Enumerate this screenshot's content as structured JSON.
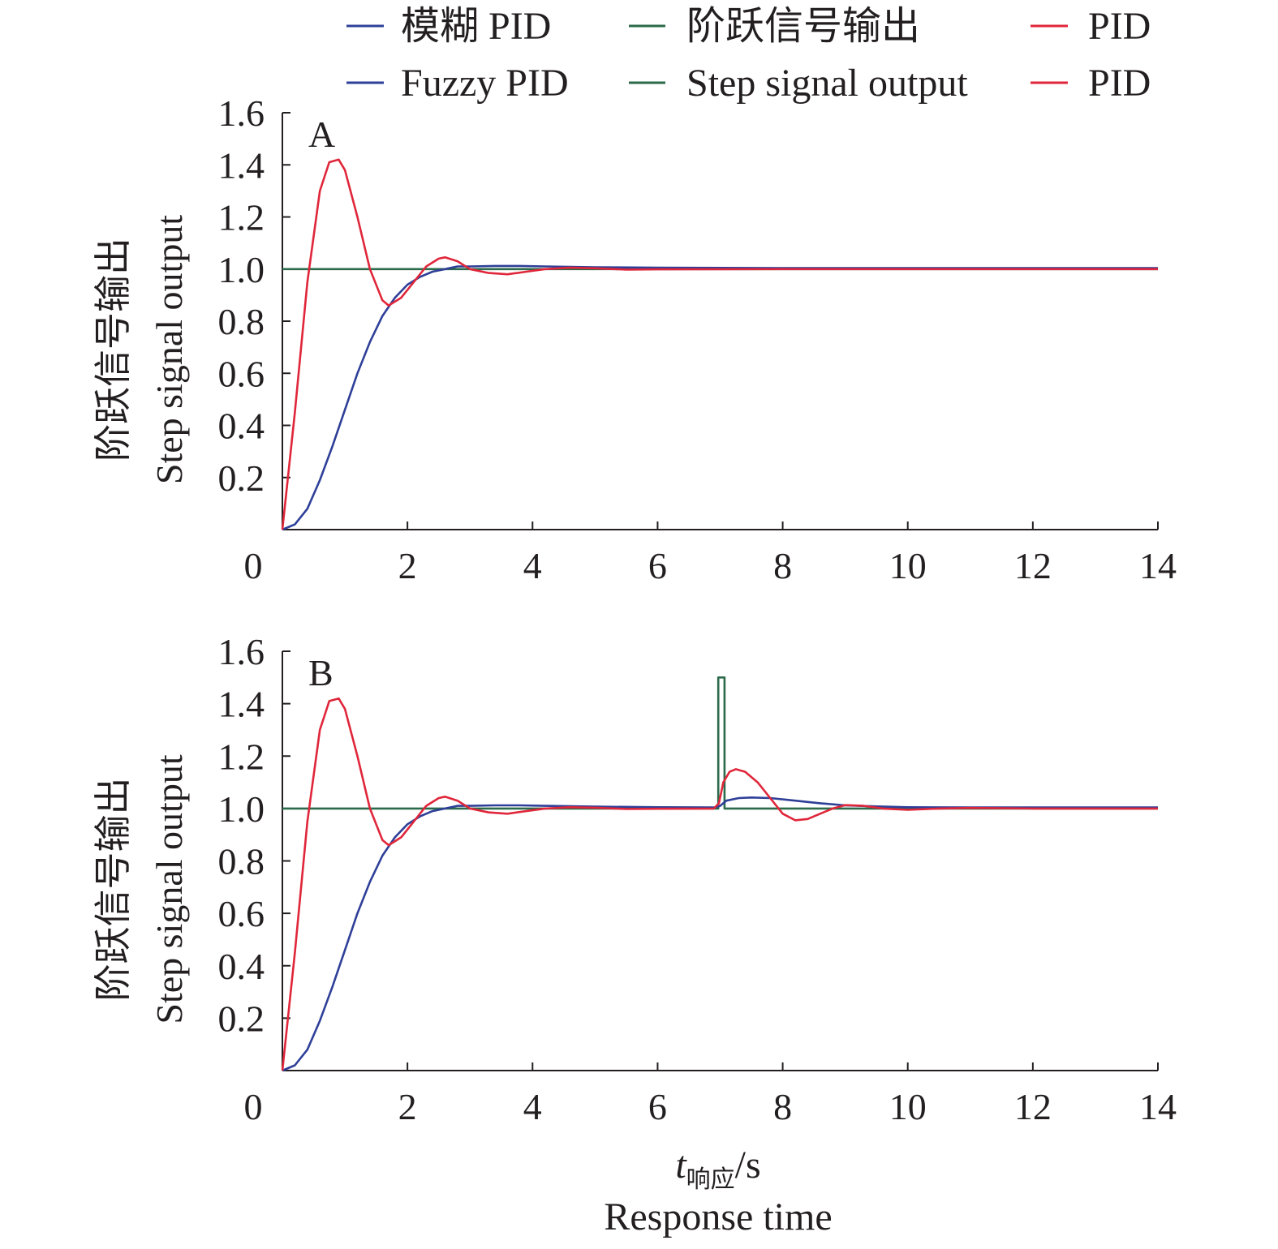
{
  "legend": [
    {
      "label_zh": "模糊 PID",
      "label_en": "Fuzzy PID",
      "color": "#2e3f98"
    },
    {
      "label_zh": "阶跃信号输出",
      "label_en": "Step signal output",
      "color": "#2b6a4a"
    },
    {
      "label_zh": "PID",
      "label_en": "PID",
      "color": "#e0263a"
    }
  ],
  "xlabel": {
    "symbol": "t",
    "subscript": "响应",
    "unit": "/s",
    "en": "Response time"
  },
  "chart_data": [
    {
      "type": "line",
      "panel_label": "A",
      "ylabel_zh": "阶跃信号输出",
      "ylabel_en": "Step signal output",
      "xlim": [
        0,
        14
      ],
      "ylim": [
        0,
        1.6
      ],
      "x_ticks": [
        "0",
        "2",
        "4",
        "6",
        "8",
        "10",
        "12",
        "14"
      ],
      "y_ticks": [
        "0.2",
        "0.4",
        "0.6",
        "0.8",
        "1.0",
        "1.2",
        "1.4",
        "1.6"
      ],
      "grid": false,
      "series": [
        {
          "name": "阶跃信号输出",
          "color": "#2b6a4a",
          "x": [
            0,
            14
          ],
          "y": [
            1.0,
            1.0
          ]
        },
        {
          "name": "模糊 PID",
          "color": "#2e3f98",
          "x": [
            0,
            0.2,
            0.4,
            0.6,
            0.8,
            1.0,
            1.2,
            1.4,
            1.6,
            1.8,
            2.0,
            2.2,
            2.4,
            2.6,
            2.8,
            3.0,
            3.4,
            3.8,
            4.2,
            5.0,
            6.0,
            8.0,
            10.0,
            12.0,
            14.0
          ],
          "y": [
            0.0,
            0.02,
            0.08,
            0.19,
            0.32,
            0.46,
            0.6,
            0.72,
            0.82,
            0.89,
            0.94,
            0.97,
            0.99,
            1.0,
            1.01,
            1.01,
            1.012,
            1.012,
            1.01,
            1.007,
            1.005,
            1.004,
            1.004,
            1.004,
            1.004
          ]
        },
        {
          "name": "PID",
          "color": "#e0263a",
          "x": [
            0,
            0.2,
            0.4,
            0.6,
            0.75,
            0.9,
            1.0,
            1.2,
            1.4,
            1.6,
            1.7,
            1.9,
            2.1,
            2.3,
            2.5,
            2.6,
            2.8,
            3.0,
            3.3,
            3.6,
            3.9,
            4.2,
            4.6,
            5.0,
            5.5,
            6.0,
            8.0,
            10.0,
            12.0,
            14.0
          ],
          "y": [
            0.0,
            0.45,
            0.95,
            1.3,
            1.41,
            1.42,
            1.38,
            1.2,
            1.0,
            0.88,
            0.86,
            0.89,
            0.95,
            1.01,
            1.04,
            1.045,
            1.03,
            1.0,
            0.985,
            0.98,
            0.99,
            1.0,
            1.005,
            1.003,
            0.998,
            0.999,
            1.0,
            1.0,
            1.0,
            1.0
          ]
        }
      ]
    },
    {
      "type": "line",
      "panel_label": "B",
      "ylabel_zh": "阶跃信号输出",
      "ylabel_en": "Step signal output",
      "xlim": [
        0,
        14
      ],
      "ylim": [
        0,
        1.6
      ],
      "x_ticks": [
        "0",
        "2",
        "4",
        "6",
        "8",
        "10",
        "12",
        "14"
      ],
      "y_ticks": [
        "0.2",
        "0.4",
        "0.6",
        "0.8",
        "1.0",
        "1.2",
        "1.4",
        "1.6"
      ],
      "grid": false,
      "series": [
        {
          "name": "阶跃信号输出",
          "color": "#2b6a4a",
          "x": [
            0,
            6.97,
            6.97,
            7.07,
            7.07,
            14
          ],
          "y": [
            1.0,
            1.0,
            1.5,
            1.5,
            1.0,
            1.0
          ]
        },
        {
          "name": "模糊 PID",
          "color": "#2e3f98",
          "x": [
            0,
            0.2,
            0.4,
            0.6,
            0.8,
            1.0,
            1.2,
            1.4,
            1.6,
            1.8,
            2.0,
            2.2,
            2.4,
            2.6,
            2.8,
            3.0,
            3.4,
            3.8,
            4.2,
            5.0,
            6.0,
            6.9,
            7.0,
            7.1,
            7.3,
            7.5,
            7.8,
            8.2,
            8.6,
            9.0,
            9.5,
            10.0,
            11.0,
            12.0,
            14.0
          ],
          "y": [
            0.0,
            0.02,
            0.08,
            0.19,
            0.32,
            0.46,
            0.6,
            0.72,
            0.82,
            0.89,
            0.94,
            0.97,
            0.99,
            1.0,
            1.01,
            1.01,
            1.012,
            1.012,
            1.01,
            1.007,
            1.005,
            1.004,
            1.01,
            1.03,
            1.04,
            1.042,
            1.04,
            1.03,
            1.02,
            1.012,
            1.008,
            1.005,
            1.004,
            1.004,
            1.004
          ]
        },
        {
          "name": "PID",
          "color": "#e0263a",
          "x": [
            0,
            0.2,
            0.4,
            0.6,
            0.75,
            0.9,
            1.0,
            1.2,
            1.4,
            1.6,
            1.7,
            1.9,
            2.1,
            2.3,
            2.5,
            2.6,
            2.8,
            3.0,
            3.3,
            3.6,
            3.9,
            4.2,
            4.6,
            5.0,
            5.5,
            6.0,
            6.9,
            6.98,
            7.05,
            7.15,
            7.25,
            7.4,
            7.6,
            7.8,
            8.0,
            8.2,
            8.4,
            8.6,
            8.8,
            9.0,
            9.3,
            9.6,
            10.0,
            10.5,
            11.0,
            12.0,
            14.0
          ],
          "y": [
            0.0,
            0.45,
            0.95,
            1.3,
            1.41,
            1.42,
            1.38,
            1.2,
            1.0,
            0.88,
            0.86,
            0.89,
            0.95,
            1.01,
            1.04,
            1.045,
            1.03,
            1.0,
            0.985,
            0.98,
            0.99,
            1.0,
            1.005,
            1.003,
            0.998,
            0.999,
            1.0,
            1.02,
            1.1,
            1.14,
            1.15,
            1.14,
            1.1,
            1.04,
            0.98,
            0.955,
            0.96,
            0.98,
            1.0,
            1.013,
            1.01,
            1.0,
            0.995,
            1.0,
            1.002,
            1.0,
            1.0
          ]
        }
      ]
    }
  ]
}
